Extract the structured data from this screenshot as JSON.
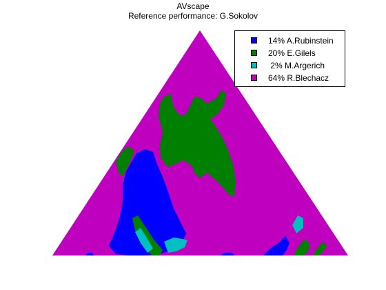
{
  "chart_data": {
    "type": "heatmap",
    "title": "AVscape",
    "subtitle": "Reference performance: G.Sokolov",
    "legend_position": "top-right",
    "grid": false,
    "axes_visible": false,
    "shape": "triangle",
    "series": [
      {
        "name": "A.Rubinstein",
        "percent": 14,
        "label": "14% A.Rubinstein",
        "color": "#0000ff"
      },
      {
        "name": "E.Gilels",
        "percent": 20,
        "label": "20% E.Gilels",
        "color": "#007f00"
      },
      {
        "name": "M.Argerich",
        "percent": 2,
        "label": " 2% M.Argerich",
        "color": "#00bfbf"
      },
      {
        "name": "R.Blechacz",
        "percent": 64,
        "label": "64% R.Blechacz",
        "color": "#bf00bf"
      }
    ]
  }
}
